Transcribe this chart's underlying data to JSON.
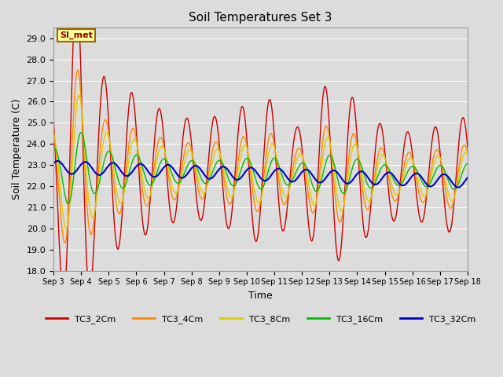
{
  "title": "Soil Temperatures Set 3",
  "xlabel": "Time",
  "ylabel": "Soil Temperature (C)",
  "ylim": [
    18.0,
    29.5
  ],
  "yticks": [
    18.0,
    19.0,
    20.0,
    21.0,
    22.0,
    23.0,
    24.0,
    25.0,
    26.0,
    27.0,
    28.0,
    29.0
  ],
  "xtick_labels": [
    "Sep 3",
    "Sep 4",
    "Sep 5",
    "Sep 6",
    "Sep 7",
    "Sep 8",
    "Sep 9",
    "Sep 10",
    "Sep 11",
    "Sep 12",
    "Sep 13",
    "Sep 14",
    "Sep 15",
    "Sep 16",
    "Sep 17",
    "Sep 18"
  ],
  "colors": {
    "TC3_2Cm": "#cc0000",
    "TC3_4Cm": "#ff8800",
    "TC3_8Cm": "#ddcc00",
    "TC3_16Cm": "#00bb00",
    "TC3_32Cm": "#0000cc"
  },
  "bg_color": "#dcdcdc",
  "annotation_text": "SI_met",
  "annotation_bg": "#ffff99",
  "annotation_border": "#996600"
}
